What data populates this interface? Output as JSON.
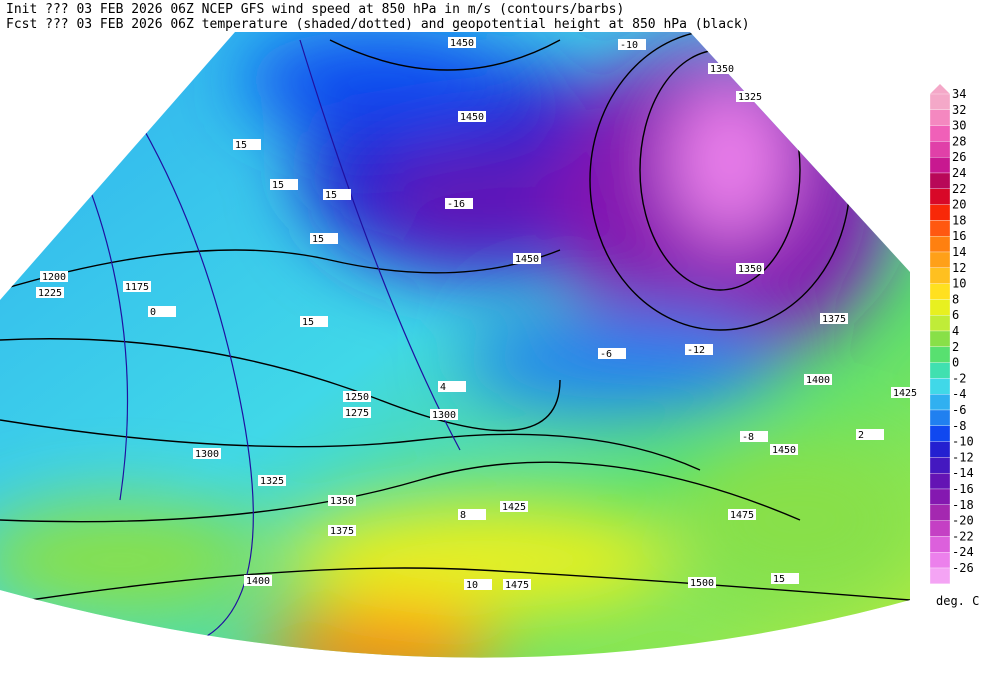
{
  "header": {
    "line1": "Init  ??? 03 FEB 2026 06Z  NCEP GFS wind speed at 850 hPa in m/s (contours/barbs)",
    "line2": "Fcst ??? 03 FEB 2026 06Z  temperature (shaded/dotted) and geopotential height at 850 hPa (black)"
  },
  "colorbar": {
    "labels": [
      "34",
      "32",
      "30",
      "28",
      "26",
      "24",
      "22",
      "20",
      "18",
      "16",
      "14",
      "12",
      "10",
      "8",
      "6",
      "4",
      "2",
      "0",
      "-2",
      "-4",
      "-6",
      "-8",
      "-10",
      "-12",
      "-14",
      "-16",
      "-18",
      "-20",
      "-22",
      "-24",
      "-26"
    ],
    "colors": [
      "#f4a8c8",
      "#f488c0",
      "#f060b8",
      "#e040a8",
      "#c81890",
      "#b80858",
      "#d80828",
      "#f82808",
      "#ff5810",
      "#ff8010",
      "#ffa018",
      "#ffc020",
      "#ffe020",
      "#e8f020",
      "#c0ec38",
      "#88e048",
      "#58e070",
      "#40e0b0",
      "#40d8e8",
      "#30b0f0",
      "#2080f0",
      "#1048f0",
      "#2420d0",
      "#4418c0",
      "#6414b4",
      "#8418b0",
      "#a428b0",
      "#c440c4",
      "#dc60dc",
      "#ec80ec",
      "#f4a4f4"
    ],
    "unit": "deg. C"
  },
  "contour_labels": [
    "1450",
    "1350",
    "1325",
    "1450",
    "1450",
    "1350",
    "1375",
    "1400",
    "1425",
    "1450",
    "1475",
    "1500",
    "1300",
    "1275",
    "1250",
    "1225",
    "1200",
    "1175",
    "1300",
    "1325",
    "1350",
    "1375",
    "1400",
    "1425",
    "1475",
    "15",
    "15",
    "15",
    "15",
    "15",
    "15",
    "-10",
    "-12",
    "-16",
    "-6",
    "-8",
    "2",
    "0",
    "4",
    "8",
    "10"
  ]
}
